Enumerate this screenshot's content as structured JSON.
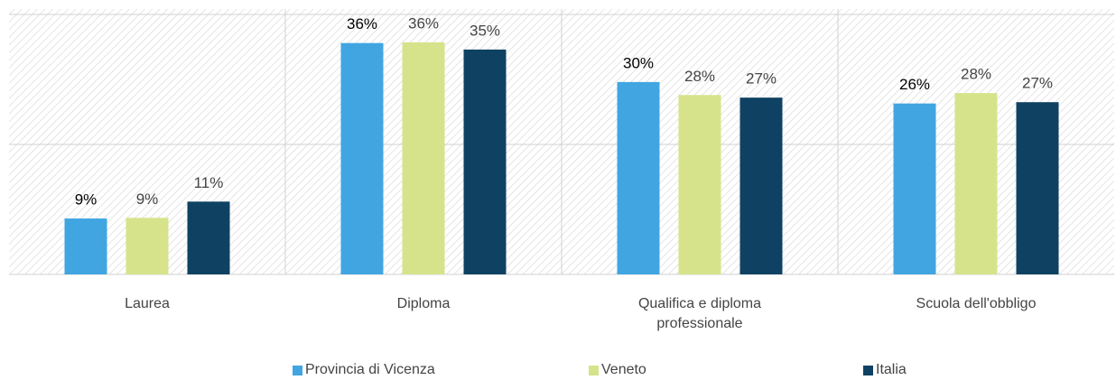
{
  "chart_data": {
    "type": "bar",
    "categories": [
      "Laurea",
      "Diploma",
      "Qualifica e diploma professionale",
      "Scuola dell'obbligo"
    ],
    "series": [
      {
        "name": "Provincia di Vicenza",
        "color": "#41a5e2",
        "values": [
          8.6,
          35.6,
          29.6,
          26.3
        ],
        "value_labels": [
          "9%",
          "36%",
          "30%",
          "26%"
        ]
      },
      {
        "name": "Veneto",
        "color": "#d6e38a",
        "values": [
          8.7,
          35.7,
          27.6,
          27.9
        ],
        "value_labels": [
          "9%",
          "36%",
          "28%",
          "28%"
        ]
      },
      {
        "name": "Italia",
        "color": "#0f4262",
        "values": [
          11.2,
          34.6,
          27.2,
          26.5
        ],
        "value_labels": [
          "11%",
          "35%",
          "27%",
          "27%"
        ]
      }
    ],
    "ylim": [
      0,
      40
    ],
    "yticks": [
      0,
      20,
      40
    ],
    "grid": true,
    "legend": "bottom"
  }
}
